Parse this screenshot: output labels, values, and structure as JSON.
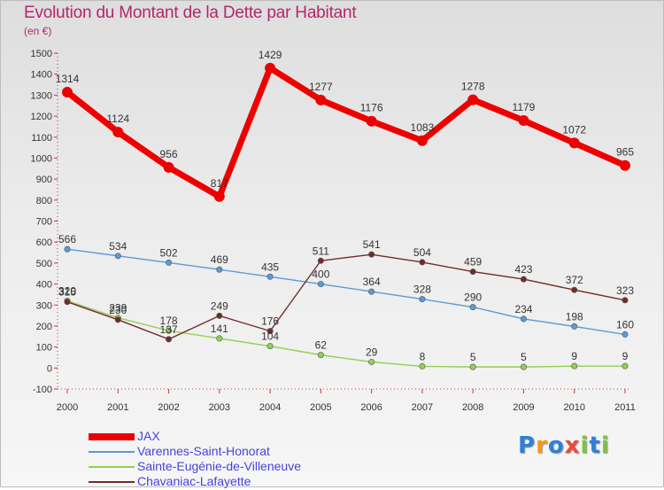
{
  "title": "Evolution du Montant de la Dette par Habitant",
  "subtitle": "(en €)",
  "logo": {
    "text": "Proxiti",
    "letters": [
      {
        "ch": "P",
        "color": "#2f7fd8"
      },
      {
        "ch": "r",
        "color": "#f39c12"
      },
      {
        "ch": "o",
        "color": "#2f7fd8"
      },
      {
        "ch": "x",
        "color": "#e74c3c"
      },
      {
        "ch": "i",
        "color": "#7ec242"
      },
      {
        "ch": "t",
        "color": "#2f7fd8"
      },
      {
        "ch": "i",
        "color": "#7ec242"
      }
    ]
  },
  "chart_data": {
    "type": "line",
    "x": [
      2000,
      2001,
      2002,
      2003,
      2004,
      2005,
      2006,
      2007,
      2008,
      2009,
      2010,
      2011
    ],
    "ylim": [
      -100,
      1500
    ],
    "yticks": [
      -100,
      0,
      100,
      200,
      300,
      400,
      500,
      600,
      700,
      800,
      900,
      1000,
      1100,
      1200,
      1300,
      1400,
      1500
    ],
    "grid": false,
    "legend_position": "bottom-left",
    "series": [
      {
        "name": "JAX",
        "color": "#ee0000",
        "values": [
          1314,
          1124,
          956,
          817,
          1429,
          1277,
          1176,
          1083,
          1278,
          1179,
          1072,
          965
        ],
        "labels": [
          "1314",
          "1124",
          "956",
          "817",
          "1429",
          "1277",
          "1176",
          "1083",
          "1278",
          "1179",
          "1072",
          "965"
        ]
      },
      {
        "name": "Varennes-Saint-Honorat",
        "color": "#5b9bd5",
        "values": [
          566,
          534,
          502,
          469,
          435,
          400,
          364,
          328,
          290,
          234,
          198,
          160
        ],
        "labels": [
          "566",
          "534",
          "502",
          "469",
          "435",
          "400",
          "364",
          "328",
          "290",
          "234",
          "198",
          "160"
        ]
      },
      {
        "name": "Sainte-Eugénie-de-Villeneuve",
        "color": "#92d050",
        "values": [
          320,
          239,
          178,
          141,
          104,
          62,
          29,
          8,
          5,
          5,
          9,
          9
        ],
        "labels": [
          "320",
          "239",
          "178",
          "141",
          "104",
          "62",
          "29",
          "8",
          "5",
          "5",
          "9",
          "9"
        ]
      },
      {
        "name": "Chavaniac-Lafayette",
        "color": "#722b2b",
        "values": [
          315,
          230,
          137,
          249,
          176,
          511,
          541,
          504,
          459,
          423,
          372,
          323
        ],
        "labels": [
          "315",
          "230",
          "137",
          "249",
          "176",
          "511",
          "541",
          "504",
          "459",
          "423",
          "372",
          "323"
        ]
      }
    ]
  }
}
